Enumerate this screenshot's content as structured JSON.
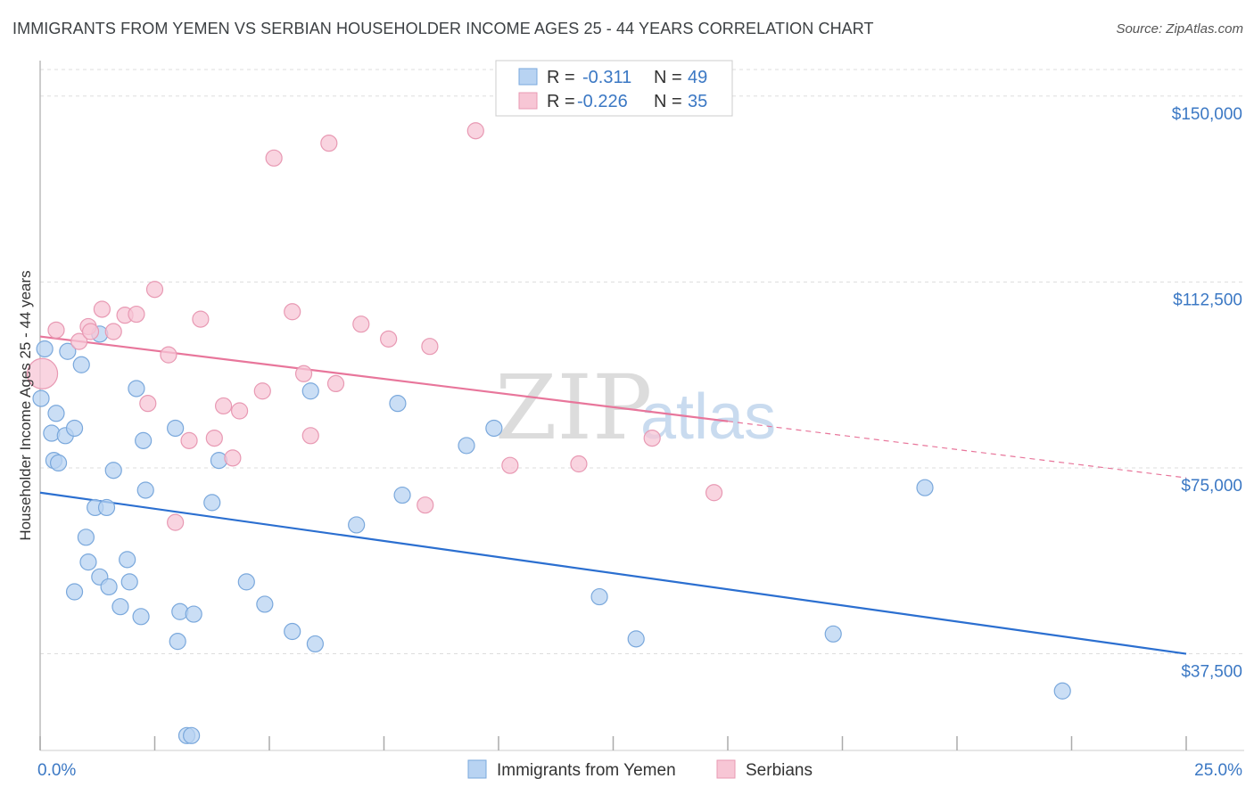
{
  "title": "IMMIGRANTS FROM YEMEN VS SERBIAN HOUSEHOLDER INCOME AGES 25 - 44 YEARS CORRELATION CHART",
  "source": "Source: ZipAtlas.com",
  "watermark": {
    "zip": "ZIP",
    "atlas": "atlas"
  },
  "colors": {
    "blue_fill": "#b8d3f2",
    "blue_stroke": "#7aa8dc",
    "blue_line": "#2b6fd0",
    "pink_fill": "#f7c6d5",
    "pink_stroke": "#e899b3",
    "pink_line": "#e8769b",
    "grid": "#dddddd",
    "tick_text": "#3b78c4"
  },
  "chart_data": {
    "type": "scatter",
    "title": "IMMIGRANTS FROM YEMEN VS SERBIAN HOUSEHOLDER INCOME AGES 25 - 44 YEARS CORRELATION CHART",
    "xlabel": "",
    "ylabel": "Householder Income Ages 25 - 44 years",
    "xlim": [
      0,
      25
    ],
    "ylim": [
      18000,
      155000
    ],
    "x_tick_labels": [
      "0.0%",
      "25.0%"
    ],
    "y_ticks": [
      37500,
      75000,
      112500,
      150000
    ],
    "y_tick_labels": [
      "$37,500",
      "$75,000",
      "$112,500",
      "$150,000"
    ],
    "grid": true,
    "legend_position": "top-center",
    "legend": [
      {
        "r_label": "R =",
        "r_value": "-0.311",
        "n_label": "N =",
        "n_value": "49"
      },
      {
        "r_label": "R =",
        "r_value": "-0.226",
        "n_label": "N =",
        "n_value": "35"
      }
    ],
    "series": [
      {
        "name": "Immigrants from Yemen",
        "color": "#b8d3f2",
        "trend": {
          "x0": 0,
          "y0": 70000,
          "x1": 25,
          "y1": 37500,
          "solid_until": 25
        },
        "points": [
          [
            0.02,
            89000,
            1
          ],
          [
            0.1,
            99000,
            1
          ],
          [
            0.25,
            82000,
            1
          ],
          [
            0.3,
            76500,
            1
          ],
          [
            0.35,
            86000,
            1
          ],
          [
            0.4,
            76000,
            1
          ],
          [
            0.55,
            81500,
            1
          ],
          [
            0.6,
            98500,
            1
          ],
          [
            0.75,
            83000,
            1
          ],
          [
            0.9,
            95800,
            1
          ],
          [
            1.0,
            61000,
            1
          ],
          [
            0.75,
            50000,
            1
          ],
          [
            1.05,
            56000,
            1
          ],
          [
            1.2,
            67000,
            1
          ],
          [
            1.3,
            53000,
            1
          ],
          [
            1.45,
            67000,
            1
          ],
          [
            1.3,
            102000,
            1
          ],
          [
            1.5,
            51000,
            1
          ],
          [
            1.6,
            74500,
            1
          ],
          [
            1.75,
            47000,
            1
          ],
          [
            1.9,
            56500,
            1
          ],
          [
            1.95,
            52000,
            1
          ],
          [
            2.1,
            91000,
            1
          ],
          [
            2.2,
            45000,
            1
          ],
          [
            2.25,
            80500,
            1
          ],
          [
            2.3,
            70500,
            1
          ],
          [
            2.95,
            83000,
            1
          ],
          [
            3.0,
            40000,
            1
          ],
          [
            3.05,
            46000,
            1
          ],
          [
            3.2,
            21000,
            1
          ],
          [
            3.3,
            21000,
            1
          ],
          [
            3.35,
            45500,
            1
          ],
          [
            3.75,
            68000,
            1
          ],
          [
            3.9,
            76500,
            1
          ],
          [
            4.5,
            52000,
            1
          ],
          [
            4.9,
            47500,
            1
          ],
          [
            5.5,
            42000,
            1
          ],
          [
            5.9,
            90500,
            1
          ],
          [
            6.0,
            39500,
            1
          ],
          [
            6.9,
            63500,
            1
          ],
          [
            7.8,
            88000,
            1
          ],
          [
            7.9,
            69500,
            1
          ],
          [
            9.3,
            79500,
            1
          ],
          [
            9.9,
            83000,
            1
          ],
          [
            12.2,
            49000,
            1
          ],
          [
            13.0,
            40500,
            1
          ],
          [
            17.3,
            41500,
            1
          ],
          [
            19.3,
            71000,
            1
          ],
          [
            22.3,
            30000,
            1
          ]
        ]
      },
      {
        "name": "Serbians",
        "color": "#f7c6d5",
        "trend": {
          "x0": 0,
          "y0": 101500,
          "x1": 25,
          "y1": 73000,
          "solid_until": 15
        },
        "points": [
          [
            0.05,
            94000,
            2
          ],
          [
            0.35,
            102800,
            1
          ],
          [
            0.85,
            100500,
            1
          ],
          [
            1.05,
            103500,
            1
          ],
          [
            1.1,
            102500,
            1
          ],
          [
            1.35,
            107000,
            1
          ],
          [
            1.6,
            102500,
            1
          ],
          [
            1.85,
            105800,
            1
          ],
          [
            2.1,
            106000,
            1
          ],
          [
            2.35,
            88000,
            1
          ],
          [
            2.5,
            111000,
            1
          ],
          [
            2.8,
            97800,
            1
          ],
          [
            2.95,
            64000,
            1
          ],
          [
            3.25,
            80500,
            1
          ],
          [
            3.5,
            105000,
            1
          ],
          [
            3.8,
            81000,
            1
          ],
          [
            4.0,
            87500,
            1
          ],
          [
            4.2,
            77000,
            1
          ],
          [
            4.35,
            86500,
            1
          ],
          [
            4.85,
            90500,
            1
          ],
          [
            5.1,
            137500,
            1
          ],
          [
            5.5,
            106500,
            1
          ],
          [
            5.75,
            94000,
            1
          ],
          [
            5.9,
            81500,
            1
          ],
          [
            6.3,
            140500,
            1
          ],
          [
            6.45,
            92000,
            1
          ],
          [
            7.0,
            104000,
            1
          ],
          [
            7.6,
            101000,
            1
          ],
          [
            8.4,
            67500,
            1
          ],
          [
            8.5,
            99500,
            1
          ],
          [
            9.5,
            143000,
            1
          ],
          [
            10.25,
            75500,
            1
          ],
          [
            11.75,
            75800,
            1
          ],
          [
            13.35,
            81000,
            1
          ],
          [
            14.7,
            70000,
            1
          ]
        ]
      }
    ]
  }
}
